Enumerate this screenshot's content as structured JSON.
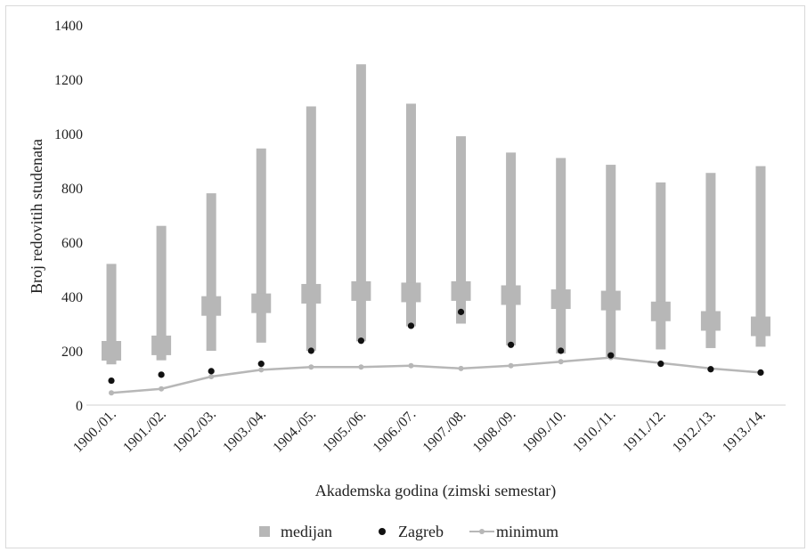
{
  "chart_data": {
    "type": "bar",
    "title": "",
    "xlabel": "Akademska godina (zimski semestar)",
    "ylabel": "Broj redovitih studenata",
    "ylim": [
      0,
      1400
    ],
    "yticks": [
      "0",
      "200",
      "400",
      "600",
      "800",
      "1000",
      "1200",
      "1400"
    ],
    "grid": false,
    "legend_position": "bottom",
    "categories": [
      "1900./01.",
      "1901./02.",
      "1902./03.",
      "1903./04.",
      "1904./05.",
      "1905./06.",
      "1906./07.",
      "1907./08.",
      "1908./09.",
      "1909./10.",
      "1910./11.",
      "1911./12.",
      "1912./13.",
      "1913./14."
    ],
    "range_low": [
      150,
      165,
      200,
      230,
      200,
      235,
      290,
      300,
      220,
      190,
      175,
      205,
      210,
      215
    ],
    "range_high": [
      520,
      660,
      780,
      945,
      1100,
      1255,
      1110,
      990,
      930,
      910,
      885,
      820,
      855,
      880
    ],
    "series": [
      {
        "name": "medijan",
        "values": [
          200,
          220,
          365,
          375,
          410,
          420,
          415,
          420,
          405,
          390,
          385,
          345,
          310,
          290
        ]
      },
      {
        "name": "Zagreb",
        "values": [
          90,
          112,
          125,
          152,
          200,
          237,
          292,
          343,
          222,
          200,
          183,
          152,
          132,
          120
        ]
      },
      {
        "name": "minimum",
        "values": [
          45,
          60,
          105,
          130,
          140,
          140,
          145,
          135,
          145,
          160,
          175,
          155,
          135,
          120
        ]
      }
    ],
    "colors": {
      "range": "#b7b7b7",
      "median": "#b7b7b7",
      "zagreb": "#111111",
      "minimum": "#b7b7b7",
      "axis": "#d0d0d0"
    }
  }
}
